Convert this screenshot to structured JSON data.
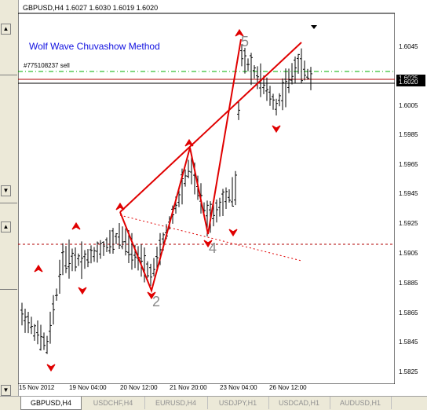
{
  "header": {
    "symbol_info": "GBPUSD,H4  1.6027 1.6030 1.6019 1.6020",
    "title": "Wolf Wave Chuvashow Method",
    "order": "#775108237 sell"
  },
  "wave_labels": [
    "2",
    "4",
    "5"
  ],
  "price_axis": [
    "1.6045",
    "1.6025",
    "1.6020",
    "1.6005",
    "1.5985",
    "1.5965",
    "1.5945",
    "1.5925",
    "1.5905",
    "1.5885",
    "1.5865",
    "1.5845",
    "1.5825"
  ],
  "price_tags": {
    "current": "1.6020",
    "bid": "1.6025"
  },
  "time_axis": [
    "15 Nov 2012",
    "19 Nov 04:00",
    "20 Nov 12:00",
    "21 Nov 20:00",
    "23 Nov 04:00",
    "26 Nov 12:00"
  ],
  "tabs": [
    "GBPUSD,H4",
    "USDCHF,H4",
    "EURUSD,H4",
    "USDJPY,H1",
    "USDCAD,H1",
    "AUDUSD,H1"
  ],
  "colors": {
    "wave": "#e00000",
    "level_green": "#00b000",
    "level_red": "#b00000",
    "title": "#1010e0",
    "price_tag": "#000000"
  }
}
